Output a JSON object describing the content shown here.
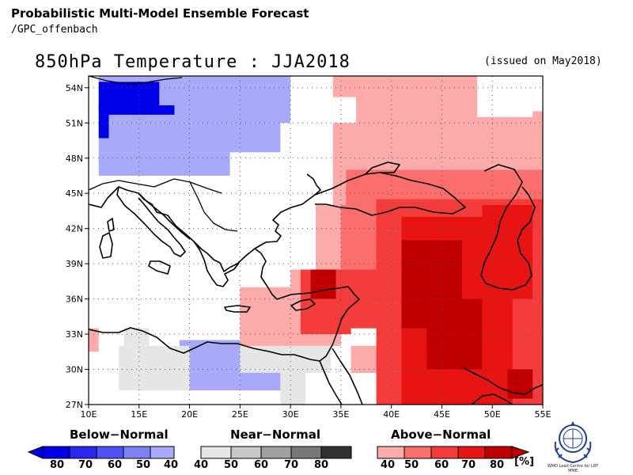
{
  "header": {
    "title": "Probabilistic Multi-Model Ensemble Forecast",
    "subtitle": "/GPC_offenbach"
  },
  "map": {
    "title": "850hPa Temperature : JJA2018",
    "issued": "(issued on May2018)",
    "lon_range": [
      10,
      55
    ],
    "lat_range": [
      27,
      55
    ],
    "grid": true,
    "lon_ticks": [
      "10E",
      "15E",
      "20E",
      "25E",
      "30E",
      "35E",
      "40E",
      "45E",
      "50E",
      "55E"
    ],
    "lat_ticks": [
      "54N",
      "51N",
      "48N",
      "45N",
      "42N",
      "39N",
      "36N",
      "33N",
      "30N",
      "27N"
    ],
    "cell_size_deg": 2.5,
    "colors": {
      "below": {
        "40": "#a9a9f9",
        "50": "#7f7ff7",
        "60": "#5050f3",
        "70": "#2828ef",
        "80": "#0000e8"
      },
      "near": {
        "40": "#e6e6e6",
        "50": "#c8c8c8",
        "60": "#a0a0a0",
        "70": "#787878",
        "80": "#323232"
      },
      "above": {
        "40": "#fcaaaa",
        "50": "#fa6e6e",
        "60": "#f53c3c",
        "70": "#e81414",
        "80": "#c00000"
      }
    },
    "regions": [
      {
        "cat": "below",
        "level": "40",
        "lon": [
          11,
          30
        ],
        "lat": [
          51,
          55
        ]
      },
      {
        "cat": "below",
        "level": "40",
        "lon": [
          11,
          29
        ],
        "lat": [
          48.5,
          51
        ]
      },
      {
        "cat": "below",
        "level": "40",
        "lon": [
          11,
          24
        ],
        "lat": [
          46.5,
          48.5
        ]
      },
      {
        "cat": "below",
        "level": "80",
        "lon": [
          11,
          17
        ],
        "lat": [
          52,
          54.5
        ]
      },
      {
        "cat": "below",
        "level": "80",
        "lon": [
          11,
          18.5
        ],
        "lat": [
          51.7,
          52.5
        ]
      },
      {
        "cat": "below",
        "level": "80",
        "lon": [
          11,
          12
        ],
        "lat": [
          49.7,
          51.7
        ]
      },
      {
        "cat": "below",
        "level": "40",
        "lon": [
          19,
          25
        ],
        "lat": [
          30,
          32.5
        ]
      },
      {
        "cat": "below",
        "level": "40",
        "lon": [
          19,
          29
        ],
        "lat": [
          28.2,
          30
        ]
      },
      {
        "cat": "near",
        "level": "40",
        "lon": [
          13.5,
          16
        ],
        "lat": [
          32,
          33.5
        ]
      },
      {
        "cat": "near",
        "level": "40",
        "lon": [
          13,
          20
        ],
        "lat": [
          28.2,
          32
        ]
      },
      {
        "cat": "near",
        "level": "40",
        "lon": [
          16,
          18.5
        ],
        "lat": [
          27,
          28.2
        ]
      },
      {
        "cat": "near",
        "level": "40",
        "lon": [
          25,
          34
        ],
        "lat": [
          29.7,
          32
        ]
      },
      {
        "cat": "near",
        "level": "40",
        "lon": [
          29,
          31.5
        ],
        "lat": [
          27,
          29.7
        ]
      },
      {
        "cat": "above",
        "level": "40",
        "lon": [
          10,
          11
        ],
        "lat": [
          31.5,
          33.5
        ]
      },
      {
        "cat": "above",
        "level": "40",
        "lon": [
          34.2,
          54
        ],
        "lat": [
          52,
          55
        ]
      },
      {
        "cat": "above",
        "level": "40",
        "lon": [
          34.2,
          55
        ],
        "lat": [
          44,
          52
        ]
      },
      {
        "cat": "above",
        "level": "40",
        "lon": [
          32.5,
          55
        ],
        "lat": [
          38.5,
          44
        ]
      },
      {
        "cat": "above",
        "level": "40",
        "lon": [
          30,
          55
        ],
        "lat": [
          33,
          38.5
        ]
      },
      {
        "cat": "above",
        "level": "40",
        "lon": [
          25,
          35
        ],
        "lat": [
          32,
          37
        ]
      },
      {
        "cat": "above",
        "level": "40",
        "lon": [
          36,
          39
        ],
        "lat": [
          27,
          32
        ]
      },
      {
        "cat": "above",
        "level": "40",
        "lon": [
          36,
          55
        ],
        "lat": [
          29.7,
          33
        ]
      },
      {
        "cat": "above",
        "level": "50",
        "lon": [
          35.5,
          55
        ],
        "lat": [
          44,
          47
        ]
      },
      {
        "cat": "above",
        "level": "50",
        "lon": [
          35,
          55
        ],
        "lat": [
          38.5,
          44
        ]
      },
      {
        "cat": "above",
        "level": "60",
        "lon": [
          38.5,
          55
        ],
        "lat": [
          27,
          44.5
        ]
      },
      {
        "cat": "above",
        "level": "60",
        "lon": [
          31,
          38.5
        ],
        "lat": [
          33,
          38.5
        ]
      },
      {
        "cat": "above",
        "level": "70",
        "lon": [
          41,
          52
        ],
        "lat": [
          27,
          43
        ]
      },
      {
        "cat": "above",
        "level": "70",
        "lon": [
          49,
          54
        ],
        "lat": [
          36,
          44
        ]
      },
      {
        "cat": "above",
        "level": "80",
        "lon": [
          32,
          34.5
        ],
        "lat": [
          36,
          38.5
        ]
      },
      {
        "cat": "above",
        "level": "80",
        "lon": [
          41,
          47
        ],
        "lat": [
          33.5,
          41
        ]
      },
      {
        "cat": "above",
        "level": "80",
        "lon": [
          43.5,
          49
        ],
        "lat": [
          30,
          36
        ]
      },
      {
        "cat": "above",
        "level": "80",
        "lon": [
          51.5,
          54
        ],
        "lat": [
          27.5,
          30
        ]
      },
      {
        "cat": "blank",
        "level": "",
        "lon": [
          36,
          38.5
        ],
        "lat": [
          32,
          33.5
        ]
      },
      {
        "cat": "blank",
        "level": "",
        "lon": [
          35.5,
          38.5
        ],
        "lat": [
          27,
          29.7
        ]
      },
      {
        "cat": "blank",
        "level": "",
        "lon": [
          34.2,
          36.5
        ],
        "lat": [
          51,
          53.2
        ]
      },
      {
        "cat": "blank",
        "level": "",
        "lon": [
          10,
          25
        ],
        "lat": [
          27,
          28.2
        ]
      },
      {
        "cat": "blank",
        "level": "",
        "lon": [
          48.5,
          54
        ],
        "lat": [
          51.5,
          55
        ]
      }
    ]
  },
  "legend": {
    "below": {
      "title": "Below−Normal",
      "labels": [
        "80",
        "70",
        "60",
        "50",
        "40"
      ]
    },
    "near": {
      "title": "Near−Normal",
      "labels": [
        "40",
        "50",
        "60",
        "70",
        "80"
      ]
    },
    "above": {
      "title": "Above−Normal",
      "labels": [
        "40",
        "50",
        "60",
        "70",
        "80"
      ]
    },
    "unit": "[%]",
    "logo_text": "WMO Lead Centre for LRF MME"
  }
}
